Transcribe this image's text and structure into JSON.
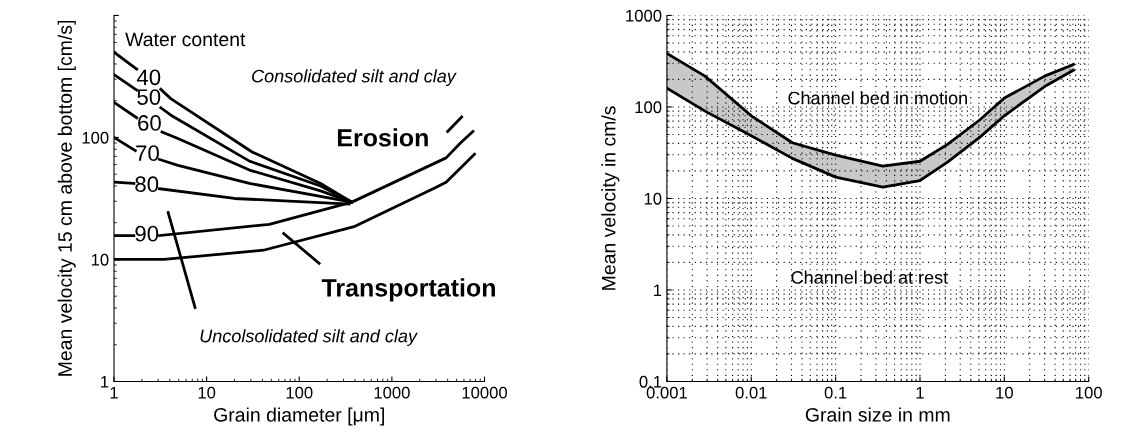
{
  "chart_data": [
    {
      "type": "line",
      "xlabel": "Grain diameter [μm]",
      "ylabel": "Mean velocity 15 cm above bottom [cm/s]",
      "log": "xy",
      "grid": false,
      "marker": "none",
      "line_style": "solid",
      "xlim": [
        1,
        10000
      ],
      "xticks": [
        1,
        10,
        100,
        1000,
        10000
      ],
      "ylim": [
        1,
        1000
      ],
      "yticks": [
        1,
        10,
        100,
        {
          "value": 1000,
          "label": null
        }
      ],
      "series": [
        {
          "name": "40",
          "color": "#000000",
          "x": [
            1,
            1.76,
            2.4,
            3.2,
            4.1,
            31,
            170,
            370
          ],
          "values": [
            500,
            363,
            null,
            248,
            208,
            76,
            42,
            29.5
          ]
        },
        {
          "name": "50",
          "color": "#000000",
          "x": [
            1,
            1.76,
            2.4,
            3.2,
            4.3,
            29,
            170,
            370
          ],
          "values": [
            327,
            244,
            null,
            175,
            149,
            64,
            40,
            29.5
          ]
        },
        {
          "name": "60",
          "color": "#000000",
          "x": [
            1,
            1.76,
            2.4,
            3.3,
            4.9,
            29,
            170,
            370
          ],
          "values": [
            194,
            145,
            null,
            111,
            98,
            54,
            36.5,
            29.5
          ]
        },
        {
          "name": "70",
          "color": "#000000",
          "x": [
            1,
            1.7,
            2.3,
            3.1,
            4.9,
            29,
            370
          ],
          "values": [
            100,
            78,
            null,
            66,
            59,
            42,
            29.5
          ]
        },
        {
          "name": "80",
          "color": "#000000",
          "x": [
            1,
            1.64,
            2.3,
            3.1,
            20,
            345
          ],
          "values": [
            43,
            42,
            null,
            38,
            31.6,
            28.5
          ]
        },
        {
          "name": "90",
          "color": "#000000",
          "x": [
            1,
            1.64,
            2.3,
            3.1,
            47.5,
            370,
            3850,
            5500,
            7500
          ],
          "values": [
            15.7,
            15.7,
            null,
            15.7,
            19.4,
            29.5,
            68,
            90,
            112
          ]
        },
        {
          "color": "#000000",
          "x": [
            1,
            3.45,
            41,
            400,
            2900,
            3850,
            7800
          ],
          "values": [
            10,
            10,
            11.9,
            18.7,
            38.5,
            43,
            73
          ]
        }
      ],
      "annotations": [
        "Water content",
        "Consolidated silt and clay",
        "Erosion",
        "Transportation",
        "Uncolsolidated silt and clay"
      ]
    },
    {
      "type": "line",
      "xlabel": "Grain size in mm",
      "ylabel": "Mean velocity in cm/s",
      "log": "xy",
      "grid": true,
      "xlim": [
        0.001,
        100
      ],
      "xticks": [
        0.001,
        0.01,
        0.1,
        1,
        10,
        100
      ],
      "ylim": [
        0.1,
        1000
      ],
      "yticks": [
        0.1,
        1,
        10,
        100,
        1000
      ],
      "series": [
        {
          "color": "#000000",
          "x": [
            0.001,
            0.00283,
            0.01,
            0.0307,
            0.1,
            0.363,
            1,
            2.12,
            5.1,
            10,
            30,
            66
          ],
          "values": [
            385,
            217,
            80,
            40.6,
            29.8,
            22.5,
            25.5,
            39,
            72,
            125,
            217,
            291
          ]
        },
        {
          "color": "#000000",
          "x": [
            0.001,
            0.00283,
            0.01,
            0.0307,
            0.1,
            0.363,
            1,
            2.12,
            5.1,
            10,
            30,
            66
          ],
          "values": [
            160,
            90,
            48.5,
            27.4,
            17.1,
            13.3,
            15.7,
            25,
            46.5,
            80,
            167,
            252
          ],
          "lower": [
            160,
            90,
            48.5,
            27.4,
            17.1,
            13.3,
            15.7,
            25,
            46.5,
            80,
            167,
            252
          ],
          "upper": [
            385,
            217,
            80,
            40.6,
            29.8,
            22.5,
            25.5,
            39,
            72,
            125,
            217,
            291
          ]
        }
      ],
      "annotations": [
        "Channel bed in motion",
        "Channel bed at rest"
      ]
    }
  ]
}
